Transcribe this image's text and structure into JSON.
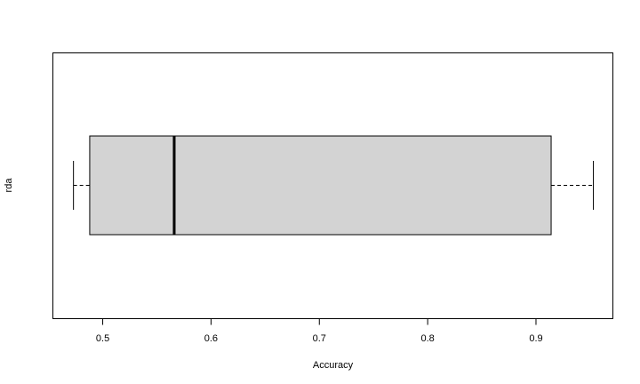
{
  "chart_data": {
    "type": "boxplot",
    "orientation": "horizontal",
    "title": "",
    "xlabel": "Accuracy",
    "ylabel": "",
    "categories": [
      "rda"
    ],
    "boxes": [
      {
        "name": "rda",
        "min": 0.473,
        "q1": 0.488,
        "median": 0.566,
        "q3": 0.914,
        "max": 0.953
      }
    ],
    "xlim": [
      0.454,
      0.971
    ],
    "xticks": [
      0.5,
      0.6,
      0.7,
      0.8,
      0.9
    ],
    "xtick_labels": [
      "0.5",
      "0.6",
      "0.7",
      "0.8",
      "0.9"
    ],
    "grid": false,
    "box_fill": "#d3d3d3",
    "line_color": "#000000"
  }
}
